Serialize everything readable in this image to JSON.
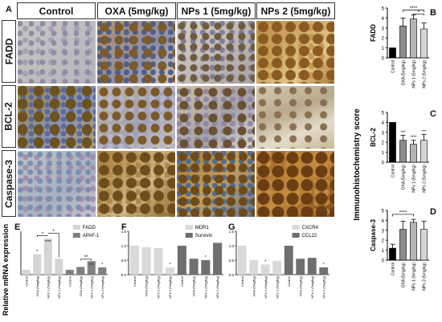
{
  "panel_a": {
    "label": "A",
    "columns": [
      "Control",
      "OXA (5mg/kg)",
      "NPs 1 (5mg/kg)",
      "NPs 2 (5mg/kg)"
    ],
    "rows": [
      "FADD",
      "BCL-2",
      "Caspase-3"
    ]
  },
  "side_axis_title": "Immunohistochemistry score",
  "bottom_axis_title": "Relative mRNA expression",
  "colors": {
    "control": "#000000",
    "oxa": "#8c8c8c",
    "nps1": "#b5b5b5",
    "nps2": "#d6d6d6",
    "fadd": "#d4d4d4",
    "apaf": "#808080"
  },
  "chart_data": [
    {
      "panel": "B",
      "type": "bar",
      "ylabel": "FADD",
      "categories": [
        "Control",
        "OXA (5mg/kg)",
        "NPs 1 (5mg/kg)",
        "NPs 2 (5mg/kg)"
      ],
      "values": [
        1.0,
        3.2,
        3.9,
        2.9
      ],
      "errors": [
        0,
        0.8,
        0.4,
        0.6
      ],
      "ylim": [
        0,
        5
      ],
      "yticks": [
        "0",
        "1",
        "2",
        "3",
        "4",
        "5"
      ],
      "annotations": [
        "****",
        "*"
      ]
    },
    {
      "panel": "C",
      "type": "bar",
      "ylabel": "BCL-2",
      "categories": [
        "Control",
        "OXA (5mg/kg)",
        "NPs 1 (5mg/kg)",
        "NPs 2 (5mg/kg)"
      ],
      "values": [
        4.0,
        2.2,
        1.8,
        2.2
      ],
      "errors": [
        0,
        0.5,
        0.4,
        0.6
      ],
      "ylim": [
        0,
        5
      ],
      "yticks": [
        "0",
        "1",
        "2",
        "3",
        "4",
        "5"
      ],
      "annotations": [
        "***",
        "****",
        "***"
      ]
    },
    {
      "panel": "D",
      "type": "bar",
      "ylabel": "Caspase-3",
      "categories": [
        "Control",
        "OXA (5mg/kg)",
        "NPs 1 (5mg/kg)",
        "NPs 2 (5mg/kg)"
      ],
      "values": [
        1.2,
        3.1,
        3.8,
        3.1
      ],
      "errors": [
        0.4,
        0.8,
        0.3,
        0.8
      ],
      "ylim": [
        0,
        5
      ],
      "yticks": [
        "0",
        "1",
        "2",
        "3",
        "4",
        "5"
      ],
      "annotations": [
        "****"
      ]
    },
    {
      "panel": "E",
      "type": "bar",
      "categories": [
        "Control",
        "OXA (5mg/kg)",
        "NPs 1 (5mg/kg)",
        "NPs 2 (5mg/kg)"
      ],
      "series": [
        {
          "name": "FADD",
          "values": [
            1.0,
            4.2,
            7.5,
            3.3
          ]
        },
        {
          "name": "APAF-1",
          "values": [
            1.0,
            1.6,
            2.8,
            1.5
          ]
        }
      ],
      "ylim": [
        0,
        9
      ],
      "annotations": [
        "*",
        "****",
        "*",
        "*",
        "**",
        "***",
        "*"
      ]
    },
    {
      "panel": "F",
      "type": "bar",
      "categories": [
        "Control",
        "OXA (5mg/kg)",
        "NPs 1 (5mg/kg)",
        "NPs 2 (5mg/kg)"
      ],
      "series": [
        {
          "name": "MDR1",
          "values": [
            1.0,
            0.95,
            0.92,
            0.25
          ]
        },
        {
          "name": "Survivin",
          "values": [
            1.0,
            0.55,
            0.5,
            1.1
          ]
        }
      ],
      "ylim": [
        0,
        1.5
      ],
      "yticks": [
        "0.0",
        "0.5",
        "1.0",
        "1.5"
      ],
      "annotations": [
        "*",
        "*"
      ]
    },
    {
      "panel": "G",
      "type": "bar",
      "categories": [
        "Control",
        "OXA (5mg/kg)",
        "NPs 1 (5mg/kg)",
        "NPs 2 (5mg/kg)"
      ],
      "series": [
        {
          "name": "CXCR4",
          "values": [
            1.0,
            0.5,
            0.35,
            0.48
          ]
        },
        {
          "name": "CCL22",
          "values": [
            1.0,
            0.55,
            0.58,
            0.25
          ]
        }
      ],
      "ylim": [
        0,
        1.5
      ],
      "yticks": [
        "0.0",
        "0.5",
        "1.0",
        "1.5"
      ],
      "annotations": [
        "*",
        "*"
      ]
    }
  ],
  "tick_labels_short": [
    "Control",
    "OXA (5mg/kg)",
    "NPs 1 (5mg/kg)",
    "NPs 2 (5mg/kg)"
  ]
}
